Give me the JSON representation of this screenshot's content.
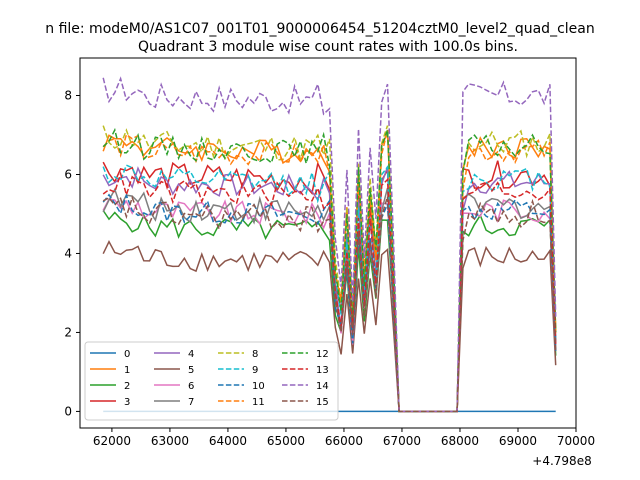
{
  "figure": {
    "suptitle": "n file: modeM0/AS1C07_001T01_9000006454_51204cztM0_level2_quad_clean",
    "title": "Quadrant 3 module wise count rates with 100.0s bins.",
    "x_offset_label": "+4.798e8"
  },
  "chart_data": {
    "type": "line",
    "title": "Quadrant 3 module wise count rates with 100.0s bins.",
    "xlabel": "",
    "ylabel": "",
    "xlim": [
      61450,
      70000
    ],
    "ylim": [
      -0.42,
      8.95
    ],
    "x_offset": 479800000,
    "x_ticks": [
      62000,
      63000,
      64000,
      65000,
      66000,
      67000,
      68000,
      69000,
      70000
    ],
    "x_tick_labels": [
      "62000",
      "63000",
      "64000",
      "65000",
      "66000",
      "67000",
      "68000",
      "69000",
      "70000"
    ],
    "y_ticks": [
      0,
      2,
      4,
      6,
      8
    ],
    "y_tick_labels": [
      "0",
      "2",
      "4",
      "6",
      "8"
    ],
    "grid": false,
    "legend": {
      "placement": "lower-left",
      "columns": 5
    },
    "x_start": 61850,
    "x_step": 100,
    "x_gap": [
      66950,
      67950
    ],
    "x_end": 69650,
    "series": [
      {
        "name": "0",
        "color": "#1f77b4",
        "dash": "solid",
        "level": 0.0,
        "amp": 0.0
      },
      {
        "name": "1",
        "color": "#ff7f0e",
        "dash": "solid",
        "level": 6.7,
        "amp": 0.3
      },
      {
        "name": "2",
        "color": "#2ca02c",
        "dash": "solid",
        "level": 4.7,
        "amp": 0.3
      },
      {
        "name": "3",
        "color": "#d62728",
        "dash": "solid",
        "level": 6.0,
        "amp": 0.35
      },
      {
        "name": "4",
        "color": "#9467bd",
        "dash": "solid",
        "level": 5.8,
        "amp": 0.3
      },
      {
        "name": "5",
        "color": "#8c564b",
        "dash": "solid",
        "level": 3.9,
        "amp": 0.3
      },
      {
        "name": "6",
        "color": "#e377c2",
        "dash": "solid",
        "level": 5.1,
        "amp": 0.3
      },
      {
        "name": "7",
        "color": "#7f7f7f",
        "dash": "solid",
        "level": 5.2,
        "amp": 0.35
      },
      {
        "name": "8",
        "color": "#bcbd22",
        "dash": "dashed",
        "level": 6.8,
        "amp": 0.35
      },
      {
        "name": "9",
        "color": "#17becf",
        "dash": "dashed",
        "level": 5.9,
        "amp": 0.3
      },
      {
        "name": "10",
        "color": "#1f77b4",
        "dash": "dashed",
        "level": 5.1,
        "amp": 0.3
      },
      {
        "name": "11",
        "color": "#ff7f0e",
        "dash": "dashed",
        "level": 6.6,
        "amp": 0.3
      },
      {
        "name": "12",
        "color": "#2ca02c",
        "dash": "dashed",
        "level": 6.7,
        "amp": 0.3
      },
      {
        "name": "13",
        "color": "#d62728",
        "dash": "dashed",
        "level": 5.6,
        "amp": 0.3
      },
      {
        "name": "14",
        "color": "#9467bd",
        "dash": "dashed",
        "level": 8.0,
        "amp": 0.35
      },
      {
        "name": "15",
        "color": "#8c564b",
        "dash": "dashed",
        "level": 5.0,
        "amp": 0.35
      }
    ]
  }
}
